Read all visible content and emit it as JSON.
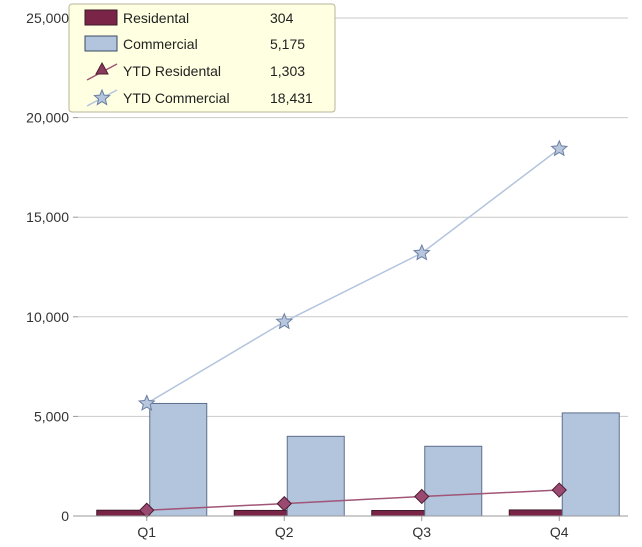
{
  "chart_data": {
    "type": "bar",
    "categories": [
      "Q1",
      "Q2",
      "Q3",
      "Q4"
    ],
    "series": [
      {
        "name": "Residental",
        "type": "bar",
        "values": [
          290,
          280,
          275,
          304
        ],
        "color": "#7a2548"
      },
      {
        "name": "Commercial",
        "type": "bar",
        "values": [
          5650,
          4000,
          3500,
          5175
        ],
        "color": "#b3c4dd"
      },
      {
        "name": "YTD Residental",
        "type": "line",
        "marker": "triangle",
        "values": [
          290,
          620,
          980,
          1303
        ],
        "color": "#a15577"
      },
      {
        "name": "YTD Commercial",
        "type": "line",
        "marker": "star",
        "values": [
          5650,
          9750,
          13200,
          18431
        ],
        "color": "#b3c4dd"
      }
    ],
    "legend": {
      "placement": "top-left",
      "entries": [
        {
          "label": "Residental",
          "value": "304"
        },
        {
          "label": "Commercial",
          "value": "5,175"
        },
        {
          "label": "YTD Residental",
          "value": "1,303"
        },
        {
          "label": "YTD Commercial",
          "value": "18,431"
        }
      ]
    },
    "y_ticks": [
      "0",
      "5,000",
      "10,000",
      "15,000",
      "20,000",
      "25,000"
    ],
    "ylim": [
      0,
      25000
    ],
    "grid": true,
    "title": "",
    "xlabel": "",
    "ylabel": ""
  }
}
